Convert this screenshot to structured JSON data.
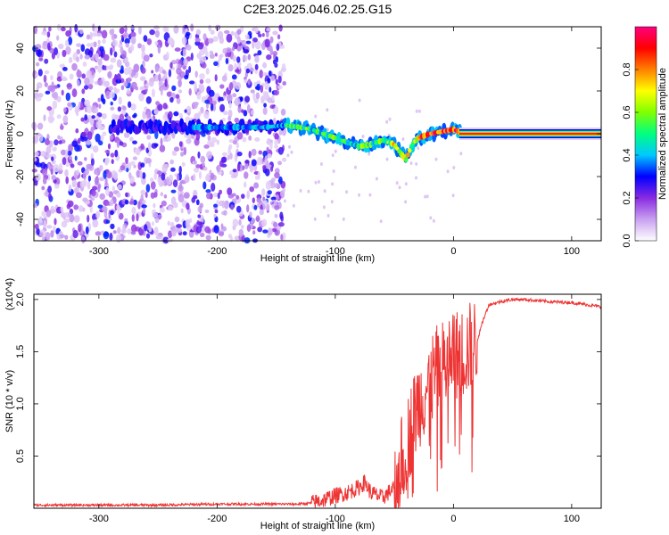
{
  "title": "C2E3.2025.046.02.25.G15",
  "chart_data": [
    {
      "type": "heatmap",
      "name": "spectrogram",
      "xlabel": "Height of straight line (km)",
      "ylabel": "Frequency (Hz)",
      "xlim": [
        -355,
        125
      ],
      "ylim": [
        -50,
        50
      ],
      "xticks": [
        -300,
        -200,
        -100,
        0,
        100
      ],
      "yticks": [
        -40,
        -20,
        0,
        20,
        40
      ],
      "colorbar": {
        "label": "Normalized spectral amplitude",
        "range": [
          0,
          1
        ],
        "ticks": [
          "0.0",
          "0.2",
          "0.4",
          "0.6",
          "0.8"
        ],
        "colors": [
          "#ffffff",
          "#c8a0f0",
          "#8a2be2",
          "#0000ff",
          "#00c8ff",
          "#00ff80",
          "#80ff00",
          "#ffff00",
          "#ff8000",
          "#ff0000",
          "#ff0080"
        ]
      },
      "noise_region_x": [
        -355,
        -143
      ],
      "ridge": {
        "x": [
          -220,
          -200,
          -180,
          -160,
          -143,
          -130,
          -120,
          -110,
          -100,
          -90,
          -80,
          -70,
          -60,
          -50,
          -45,
          -40,
          -35,
          -30,
          -20,
          -10,
          0,
          5,
          10,
          50,
          100,
          125
        ],
        "y": [
          3,
          3,
          3,
          3,
          4,
          3,
          2,
          0,
          -2,
          -4,
          -6,
          -5,
          -3,
          -5,
          -9,
          -12,
          -5,
          -2,
          0,
          1,
          2,
          1,
          0,
          0,
          0,
          0
        ]
      }
    },
    {
      "type": "line",
      "name": "snr",
      "xlabel": "Height of straight line (km)",
      "ylabel": "SNR (10 * v/v)",
      "yunit": "(x10^4)",
      "xlim": [
        -355,
        125
      ],
      "ylim": [
        0,
        2.05
      ],
      "xticks": [
        -300,
        -200,
        -100,
        0,
        100
      ],
      "yticks": [
        "0.5",
        "1.0",
        "1.5",
        "2.0"
      ],
      "color": "#ee3333",
      "series": {
        "x": [
          -355,
          -300,
          -250,
          -200,
          -150,
          -130,
          -120,
          -110,
          -100,
          -90,
          -80,
          -75,
          -70,
          -60,
          -50,
          -45,
          -40,
          -35,
          -30,
          -25,
          -20,
          -15,
          -10,
          -5,
          0,
          10,
          20,
          25,
          30,
          40,
          50,
          60,
          80,
          100,
          125
        ],
        "y": [
          0.03,
          0.03,
          0.03,
          0.04,
          0.04,
          0.04,
          0.05,
          0.08,
          0.12,
          0.15,
          0.2,
          0.25,
          0.15,
          0.1,
          0.2,
          0.4,
          0.6,
          0.8,
          1.0,
          1.1,
          1.2,
          1.3,
          1.35,
          1.4,
          1.45,
          1.5,
          1.6,
          1.8,
          1.95,
          1.98,
          2.0,
          2.0,
          1.98,
          1.97,
          1.93
        ]
      }
    }
  ]
}
